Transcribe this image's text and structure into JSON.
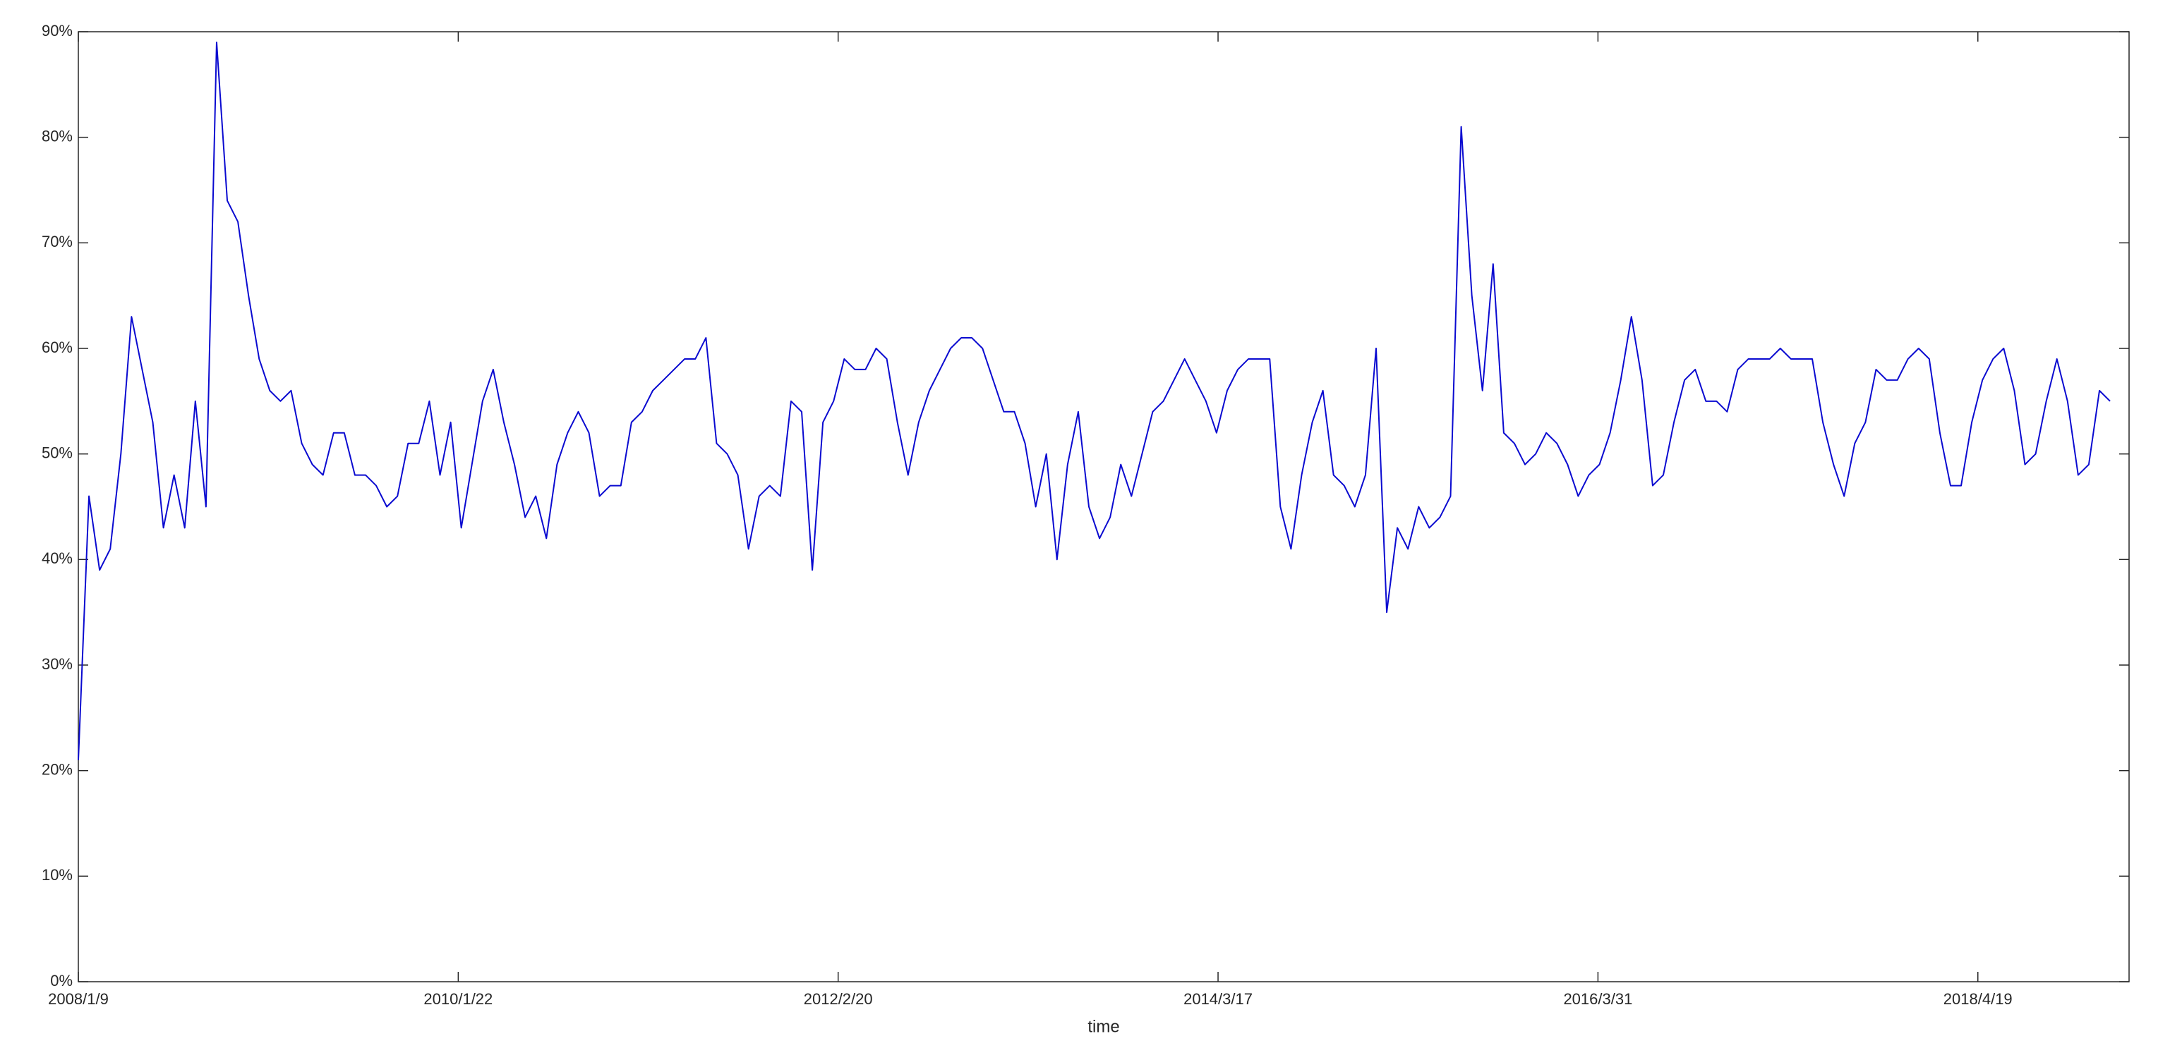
{
  "chart_data": {
    "type": "line",
    "x_label": "time",
    "x": [
      1,
      15,
      29,
      43,
      57,
      71,
      85,
      99,
      113,
      127,
      141,
      155,
      169,
      183,
      197,
      211,
      225,
      239,
      253,
      267,
      281,
      295,
      309,
      323,
      337,
      351,
      365,
      379,
      393,
      407,
      421,
      435,
      449,
      463,
      477,
      491,
      505,
      519,
      533,
      547,
      561,
      575,
      589,
      603,
      617,
      631,
      645,
      659,
      673,
      687,
      701,
      715,
      729,
      743,
      757,
      771,
      785,
      799,
      813,
      827,
      841,
      855,
      869,
      883,
      897,
      911,
      925,
      939,
      953,
      967,
      981,
      995,
      1009,
      1023,
      1037,
      1051,
      1065,
      1079,
      1093,
      1107,
      1121,
      1135,
      1149,
      1163,
      1177,
      1191,
      1205,
      1219,
      1233,
      1247,
      1261,
      1275,
      1289,
      1303,
      1317,
      1331,
      1345,
      1359,
      1373,
      1387,
      1401,
      1415,
      1429,
      1443,
      1457,
      1471,
      1485,
      1499,
      1513,
      1527,
      1541,
      1555,
      1569,
      1583,
      1597,
      1611,
      1625,
      1639,
      1653,
      1667,
      1681,
      1695,
      1709,
      1723,
      1737,
      1751,
      1765,
      1779,
      1793,
      1807,
      1821,
      1835,
      1849,
      1863,
      1877,
      1891,
      1905,
      1919,
      1933,
      1947,
      1961,
      1975,
      1989,
      2003,
      2017,
      2031,
      2045,
      2059,
      2073,
      2087,
      2101,
      2115,
      2129,
      2143,
      2157,
      2171,
      2185,
      2199,
      2213,
      2227,
      2241,
      2255,
      2269,
      2283,
      2297,
      2311,
      2325,
      2339,
      2353,
      2367,
      2381,
      2395,
      2409,
      2423,
      2437,
      2451,
      2465,
      2479,
      2493,
      2507,
      2521,
      2535,
      2549,
      2563,
      2577,
      2591,
      2605,
      2619,
      2633,
      2647,
      2661,
      2675
    ],
    "values": [
      21,
      46,
      39,
      41,
      50,
      63,
      58,
      53,
      43,
      48,
      43,
      55,
      45,
      89,
      74,
      72,
      65,
      59,
      56,
      55,
      56,
      51,
      49,
      48,
      52,
      52,
      48,
      48,
      47,
      45,
      46,
      51,
      51,
      55,
      48,
      53,
      43,
      49,
      55,
      58,
      53,
      49,
      44,
      46,
      42,
      49,
      52,
      54,
      52,
      46,
      47,
      47,
      53,
      54,
      56,
      57,
      58,
      59,
      59,
      61,
      51,
      50,
      48,
      41,
      46,
      47,
      46,
      55,
      54,
      39,
      53,
      55,
      59,
      58,
      58,
      60,
      59,
      53,
      48,
      53,
      56,
      58,
      60,
      61,
      61,
      60,
      57,
      54,
      54,
      51,
      45,
      50,
      40,
      49,
      54,
      45,
      42,
      44,
      49,
      46,
      50,
      54,
      55,
      57,
      59,
      57,
      55,
      52,
      56,
      58,
      59,
      59,
      59,
      45,
      41,
      48,
      53,
      56,
      48,
      47,
      45,
      48,
      60,
      35,
      43,
      41,
      45,
      43,
      44,
      46,
      81,
      65,
      56,
      68,
      52,
      51,
      49,
      50,
      52,
      51,
      49,
      46,
      48,
      49,
      52,
      57,
      63,
      57,
      47,
      48,
      53,
      57,
      58,
      55,
      55,
      54,
      58,
      59,
      59,
      59,
      60,
      59,
      59,
      59,
      53,
      49,
      46,
      51,
      53,
      58,
      57,
      57,
      59,
      60,
      59,
      52,
      47,
      47,
      53,
      57,
      59,
      60,
      56,
      49,
      50,
      55,
      59,
      55,
      48,
      49,
      56,
      55
    ],
    "color": "#0a0ad0",
    "xlim": [
      1,
      2700
    ],
    "xticks": [
      {
        "value": 1,
        "label": "2008/1/9"
      },
      {
        "value": 501,
        "label": "2010/1/22"
      },
      {
        "value": 1001,
        "label": "2012/2/20"
      },
      {
        "value": 1501,
        "label": "2014/3/17"
      },
      {
        "value": 2001,
        "label": "2016/3/31"
      },
      {
        "value": 2501,
        "label": "2018/4/19"
      }
    ],
    "ylim": [
      0,
      90
    ],
    "yticks": [
      {
        "value": 0,
        "label": "0%"
      },
      {
        "value": 10,
        "label": "10%"
      },
      {
        "value": 20,
        "label": "20%"
      },
      {
        "value": 30,
        "label": "30%"
      },
      {
        "value": 40,
        "label": "40%"
      },
      {
        "value": 50,
        "label": "50%"
      },
      {
        "value": 60,
        "label": "60%"
      },
      {
        "value": 70,
        "label": "70%"
      },
      {
        "value": 80,
        "label": "80%"
      },
      {
        "value": 90,
        "label": "90%"
      }
    ],
    "grid": false
  }
}
